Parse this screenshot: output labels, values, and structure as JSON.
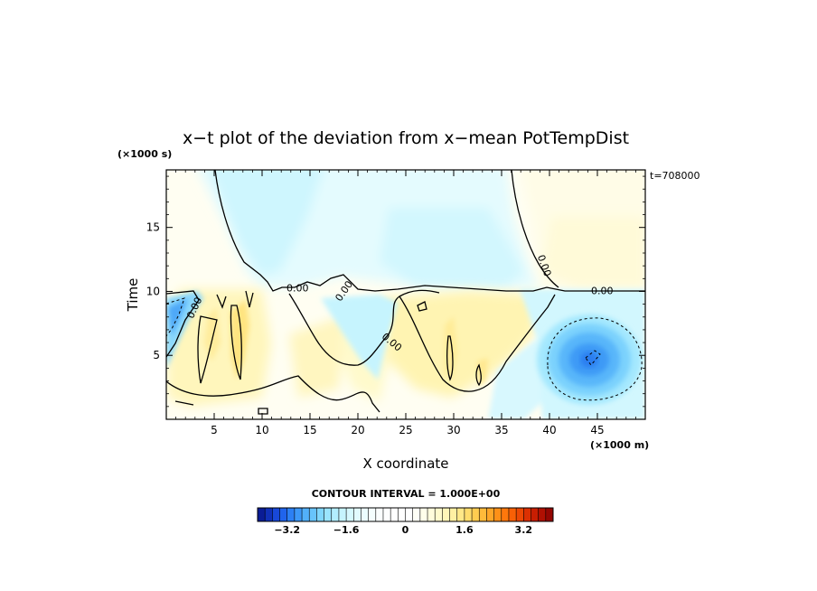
{
  "chart_data": {
    "type": "heatmap",
    "title": "x−t plot of the deviation from x−mean PotTempDist",
    "xlabel": "X coordinate",
    "ylabel": "Time",
    "x_unit": "(×1000 m)",
    "y_unit": "(×1000 s)",
    "time_stamp": "t=708000",
    "xlim": [
      0,
      50
    ],
    "ylim": [
      0,
      19.5
    ],
    "x_ticks": [
      5,
      10,
      15,
      20,
      25,
      30,
      35,
      40,
      45
    ],
    "x_tick_labels": [
      "5",
      "10",
      "15",
      "20",
      "25",
      "30",
      "35",
      "40",
      "45"
    ],
    "y_ticks": [
      5,
      10,
      15
    ],
    "y_tick_labels": [
      "5",
      "10",
      "15"
    ],
    "contour_labels": [
      {
        "text": "0.00",
        "x": 3.0,
        "y": 8.7,
        "angle": -65
      },
      {
        "text": "0.00",
        "x": 13.7,
        "y": 10.2,
        "angle": 0
      },
      {
        "text": "0.00",
        "x": 18.6,
        "y": 10.0,
        "angle": -55
      },
      {
        "text": "0.00",
        "x": 23.5,
        "y": 6.0,
        "angle": 40
      },
      {
        "text": "0.00",
        "x": 39.4,
        "y": 12.0,
        "angle": 70
      },
      {
        "text": "0.00",
        "x": 45.5,
        "y": 10.0,
        "angle": 0
      }
    ],
    "colorbar": {
      "interval_text": "CONTOUR INTERVAL = 1.000E+00",
      "min": -4,
      "max": 4,
      "n_levels": 40,
      "tick_values": [
        -3.2,
        -1.6,
        0,
        1.6,
        3.2
      ],
      "tick_labels": [
        "−3.2",
        "−1.6",
        "0",
        "1.6",
        "3.2"
      ],
      "colors": [
        "#0a1c96",
        "#1030b8",
        "#1848d8",
        "#2064ec",
        "#2c80f4",
        "#3c98f8",
        "#52b0fa",
        "#68c4fc",
        "#80d6fd",
        "#9ae4fe",
        "#b2eefe",
        "#c6f4fe",
        "#d6f8fe",
        "#e2fafe",
        "#ecfcfe",
        "#f4fefe",
        "#fafefe",
        "#fdfefe",
        "#ffffff",
        "#ffffff",
        "#ffffff",
        "#fffff6",
        "#fffeea",
        "#fffcdc",
        "#fffacc",
        "#fff6b8",
        "#fff0a2",
        "#ffe888",
        "#ffdc6c",
        "#ffcc50",
        "#ffba3a",
        "#ffa628",
        "#ff9018",
        "#ff780c",
        "#f86006",
        "#ec4804",
        "#dc3002",
        "#c81e02",
        "#b01002",
        "#940602"
      ]
    }
  }
}
